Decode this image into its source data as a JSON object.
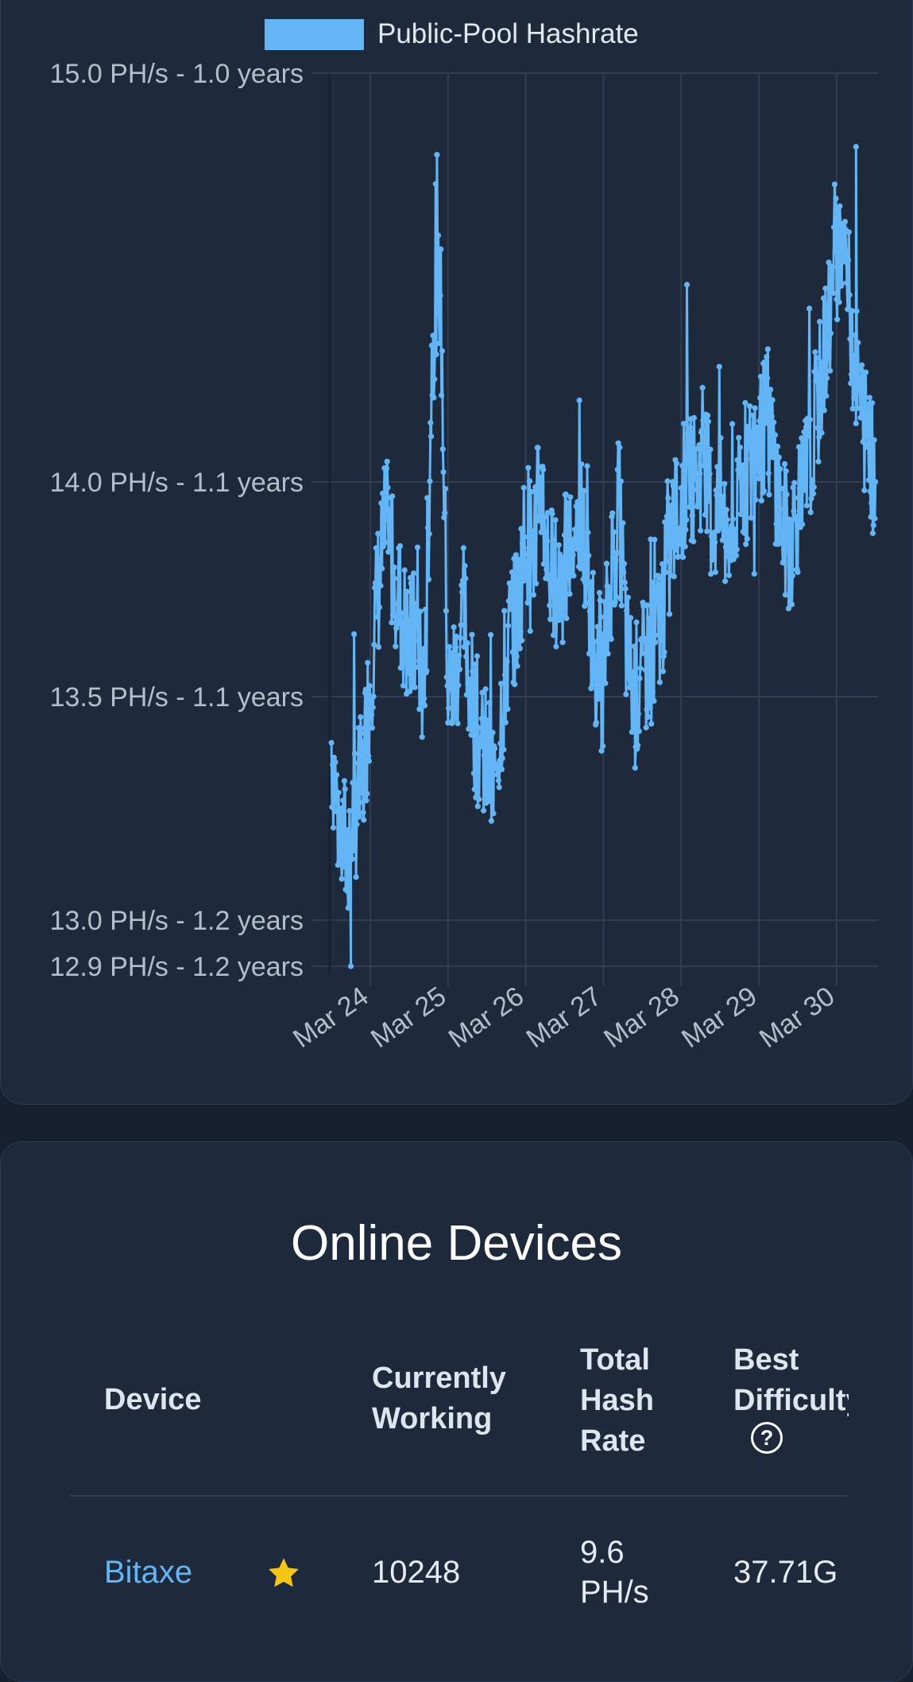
{
  "chart_data": {
    "type": "line",
    "legend": {
      "label": "Public-Pool Hashrate",
      "color": "#64b5f6",
      "position": "top-center"
    },
    "y_ticks": [
      {
        "value": 15.0,
        "label": "15.0 PH/s - 1.0 years"
      },
      {
        "value": 14.0,
        "label": "14.0 PH/s - 1.1 years"
      },
      {
        "value": 13.5,
        "label": "13.5 PH/s - 1.1 years"
      },
      {
        "value": 13.0,
        "label": "13.0 PH/s - 1.2 years"
      },
      {
        "value": 12.9,
        "label": "12.9 PH/s - 1.2 years"
      }
    ],
    "ylim": [
      12.9,
      15.0
    ],
    "x_ticks": [
      "Mar 24",
      "Mar 25",
      "Mar 26",
      "Mar 27",
      "Mar 28",
      "Mar 29",
      "Mar 30"
    ],
    "xlim_days": [
      23.5,
      30.5
    ],
    "x_unit": "day of March",
    "grid": true,
    "series": [
      {
        "name": "Public-Pool Hashrate",
        "color": "#64b5f6",
        "x": [
          23.5,
          23.6,
          23.7,
          23.8,
          23.9,
          24.0,
          24.1,
          24.2,
          24.3,
          24.4,
          24.5,
          24.6,
          24.7,
          24.8,
          24.9,
          25.0,
          25.1,
          25.2,
          25.3,
          25.4,
          25.5,
          25.6,
          25.7,
          25.8,
          25.9,
          26.0,
          26.1,
          26.2,
          26.3,
          26.4,
          26.5,
          26.6,
          26.7,
          26.8,
          26.9,
          27.0,
          27.1,
          27.2,
          27.3,
          27.4,
          27.5,
          27.6,
          27.7,
          27.8,
          27.9,
          28.0,
          28.1,
          28.2,
          28.3,
          28.4,
          28.5,
          28.6,
          28.7,
          28.8,
          28.9,
          29.0,
          29.1,
          29.2,
          29.3,
          29.4,
          29.5,
          29.6,
          29.7,
          29.8,
          29.9,
          30.0,
          30.1,
          30.2,
          30.3,
          30.4,
          30.5
        ],
        "y": [
          13.4,
          13.2,
          13.15,
          13.25,
          13.3,
          13.55,
          13.75,
          13.9,
          13.8,
          13.7,
          13.6,
          13.65,
          13.5,
          14.35,
          14.5,
          13.5,
          13.55,
          13.7,
          13.5,
          13.4,
          13.35,
          13.3,
          13.5,
          13.65,
          13.7,
          13.9,
          13.85,
          14.0,
          13.8,
          13.75,
          13.8,
          13.85,
          13.95,
          13.75,
          13.6,
          13.55,
          13.8,
          13.95,
          13.6,
          13.5,
          13.55,
          13.6,
          13.65,
          13.75,
          13.9,
          13.95,
          14.05,
          14.0,
          14.1,
          13.9,
          13.95,
          13.85,
          13.9,
          14.0,
          14.05,
          14.1,
          14.15,
          14.05,
          13.9,
          13.85,
          13.95,
          14.0,
          14.1,
          14.25,
          14.4,
          14.55,
          14.6,
          14.35,
          14.2,
          14.1,
          14.0
        ],
        "min_value": 12.9,
        "max_value": 14.82
      }
    ]
  },
  "devices": {
    "title": "Online Devices",
    "headers": {
      "device": "Device",
      "working_line1": "Currently",
      "working_line2": "Working",
      "hashrate_line1": "Total",
      "hashrate_line2": "Hash",
      "hashrate_line3": "Rate",
      "difficulty_line1": "Best",
      "difficulty_line2": "Difficulty"
    },
    "rows": [
      {
        "device": "Bitaxe",
        "working": "10248",
        "hashrate_line1": "9.6",
        "hashrate_line2": "PH/s",
        "best_difficulty": "37.71G"
      }
    ]
  },
  "colors": {
    "background": "#17202e",
    "card": "#1e2a3c",
    "accent": "#64b5f6",
    "star": "#f5c518"
  },
  "icons": [
    "star-icon",
    "help-icon"
  ]
}
